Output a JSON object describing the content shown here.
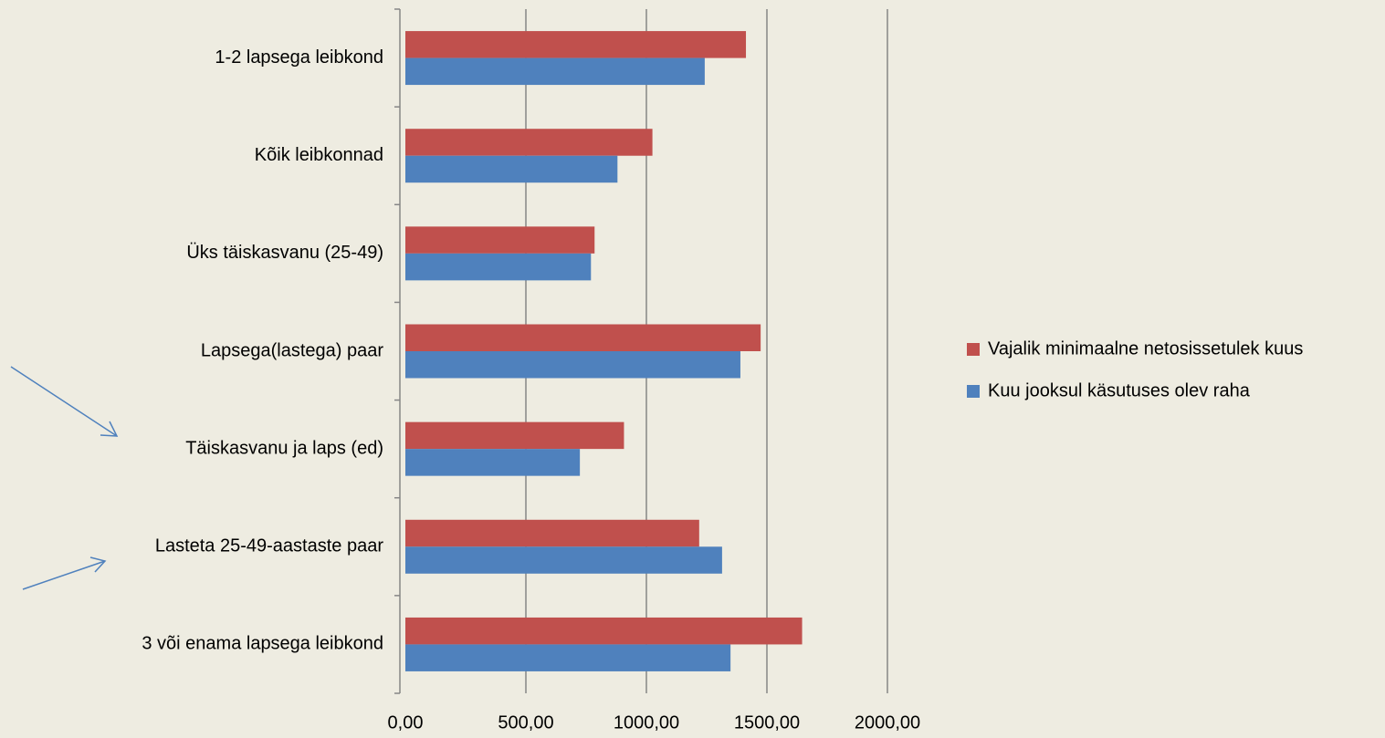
{
  "chart_data": {
    "type": "bar",
    "orientation": "horizontal",
    "categories": [
      "1-2 lapsega leibkond",
      "Kõik leibkonnad",
      "Üks täiskasvanu (25-49)",
      "Lapsega(lastega) paar",
      "Täiskasvanu ja laps (ed)",
      "Lasteta 25-49-aastaste paar",
      "3 või enama lapsega leibkond"
    ],
    "series": [
      {
        "name": "Vajalik minimaalne netosissetulek kuus",
        "color": "#c0504d",
        "values": [
          1413,
          1025,
          785,
          1474,
          907,
          1219,
          1646
        ]
      },
      {
        "name": "Kuu jooksul käsutuses olev raha",
        "color": "#4f81bd",
        "values": [
          1242,
          880,
          770,
          1390,
          724,
          1314,
          1349
        ]
      }
    ],
    "xlim": [
      0,
      2000
    ],
    "xticks": [
      {
        "value": 0,
        "label": "0,00"
      },
      {
        "value": 500,
        "label": "500,00"
      },
      {
        "value": 1000,
        "label": "1000,00"
      },
      {
        "value": 1500,
        "label": "1500,00"
      },
      {
        "value": 2000,
        "label": "2000,00"
      }
    ],
    "grid": true,
    "legend": "right"
  }
}
